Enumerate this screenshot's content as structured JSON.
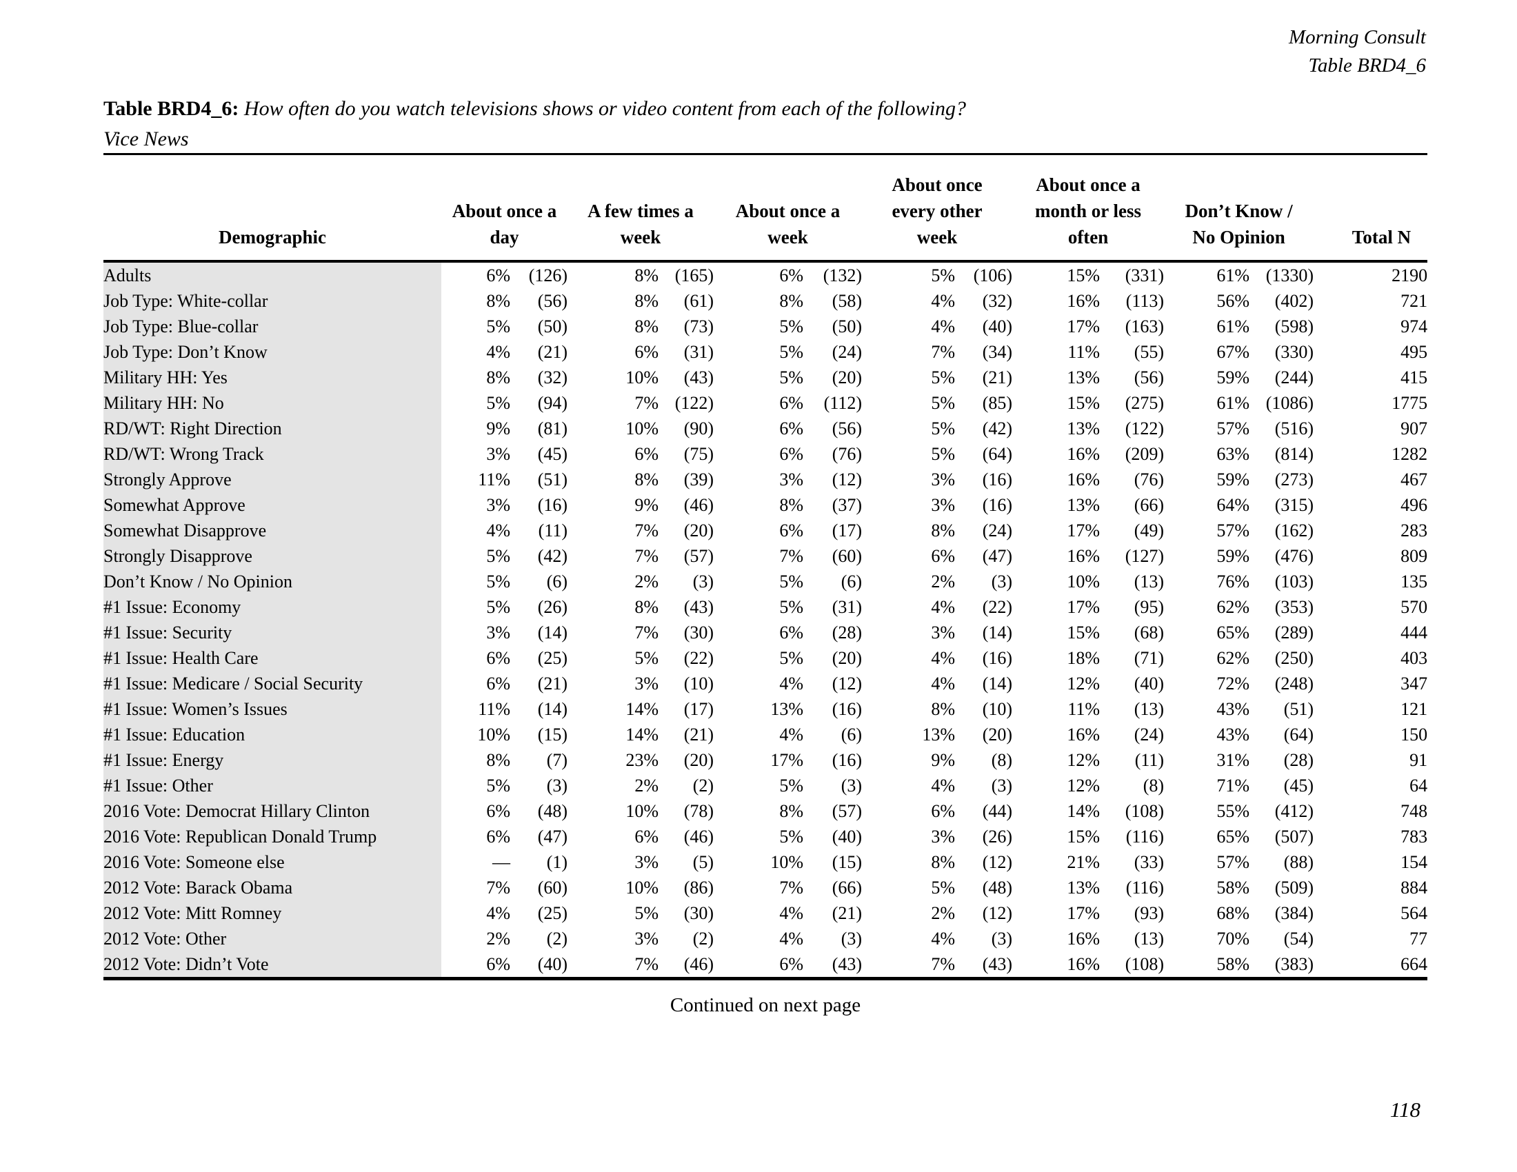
{
  "branding": {
    "org": "Morning Consult",
    "table_ref": "Table BRD4_6"
  },
  "title": {
    "label": "Table BRD4_6:",
    "question": "How often do you watch televisions shows or video content from each of the following?",
    "subject": "Vice News"
  },
  "colors": {
    "demographic_shade": "#e4e4e4"
  },
  "table": {
    "demographic_header": "Demographic",
    "total_header": "Total N",
    "category_headers": [
      {
        "lines": [
          "About once a",
          "day"
        ]
      },
      {
        "lines": [
          "A few times a",
          "week"
        ]
      },
      {
        "lines": [
          "About once a",
          "week"
        ]
      },
      {
        "lines": [
          "About once",
          "every other",
          "week"
        ]
      },
      {
        "lines": [
          "About once a",
          "month or less",
          "often"
        ]
      },
      {
        "lines": [
          "Don’t Know /",
          "No Opinion"
        ]
      }
    ],
    "rows": [
      {
        "demographic": "Adults",
        "values": [
          [
            "6%",
            "(126)"
          ],
          [
            "8%",
            "(165)"
          ],
          [
            "6%",
            "(132)"
          ],
          [
            "5%",
            "(106)"
          ],
          [
            "15%",
            "(331)"
          ],
          [
            "61%",
            "(1330)"
          ]
        ],
        "total": "2190"
      },
      {
        "demographic": "Job Type: White-collar",
        "values": [
          [
            "8%",
            "(56)"
          ],
          [
            "8%",
            "(61)"
          ],
          [
            "8%",
            "(58)"
          ],
          [
            "4%",
            "(32)"
          ],
          [
            "16%",
            "(113)"
          ],
          [
            "56%",
            "(402)"
          ]
        ],
        "total": "721"
      },
      {
        "demographic": "Job Type: Blue-collar",
        "values": [
          [
            "5%",
            "(50)"
          ],
          [
            "8%",
            "(73)"
          ],
          [
            "5%",
            "(50)"
          ],
          [
            "4%",
            "(40)"
          ],
          [
            "17%",
            "(163)"
          ],
          [
            "61%",
            "(598)"
          ]
        ],
        "total": "974"
      },
      {
        "demographic": "Job Type: Don’t Know",
        "values": [
          [
            "4%",
            "(21)"
          ],
          [
            "6%",
            "(31)"
          ],
          [
            "5%",
            "(24)"
          ],
          [
            "7%",
            "(34)"
          ],
          [
            "11%",
            "(55)"
          ],
          [
            "67%",
            "(330)"
          ]
        ],
        "total": "495"
      },
      {
        "demographic": "Military HH: Yes",
        "values": [
          [
            "8%",
            "(32)"
          ],
          [
            "10%",
            "(43)"
          ],
          [
            "5%",
            "(20)"
          ],
          [
            "5%",
            "(21)"
          ],
          [
            "13%",
            "(56)"
          ],
          [
            "59%",
            "(244)"
          ]
        ],
        "total": "415"
      },
      {
        "demographic": "Military HH: No",
        "values": [
          [
            "5%",
            "(94)"
          ],
          [
            "7%",
            "(122)"
          ],
          [
            "6%",
            "(112)"
          ],
          [
            "5%",
            "(85)"
          ],
          [
            "15%",
            "(275)"
          ],
          [
            "61%",
            "(1086)"
          ]
        ],
        "total": "1775"
      },
      {
        "demographic": "RD/WT: Right Direction",
        "values": [
          [
            "9%",
            "(81)"
          ],
          [
            "10%",
            "(90)"
          ],
          [
            "6%",
            "(56)"
          ],
          [
            "5%",
            "(42)"
          ],
          [
            "13%",
            "(122)"
          ],
          [
            "57%",
            "(516)"
          ]
        ],
        "total": "907"
      },
      {
        "demographic": "RD/WT: Wrong Track",
        "values": [
          [
            "3%",
            "(45)"
          ],
          [
            "6%",
            "(75)"
          ],
          [
            "6%",
            "(76)"
          ],
          [
            "5%",
            "(64)"
          ],
          [
            "16%",
            "(209)"
          ],
          [
            "63%",
            "(814)"
          ]
        ],
        "total": "1282"
      },
      {
        "demographic": "Strongly Approve",
        "values": [
          [
            "11%",
            "(51)"
          ],
          [
            "8%",
            "(39)"
          ],
          [
            "3%",
            "(12)"
          ],
          [
            "3%",
            "(16)"
          ],
          [
            "16%",
            "(76)"
          ],
          [
            "59%",
            "(273)"
          ]
        ],
        "total": "467"
      },
      {
        "demographic": "Somewhat Approve",
        "values": [
          [
            "3%",
            "(16)"
          ],
          [
            "9%",
            "(46)"
          ],
          [
            "8%",
            "(37)"
          ],
          [
            "3%",
            "(16)"
          ],
          [
            "13%",
            "(66)"
          ],
          [
            "64%",
            "(315)"
          ]
        ],
        "total": "496"
      },
      {
        "demographic": "Somewhat Disapprove",
        "values": [
          [
            "4%",
            "(11)"
          ],
          [
            "7%",
            "(20)"
          ],
          [
            "6%",
            "(17)"
          ],
          [
            "8%",
            "(24)"
          ],
          [
            "17%",
            "(49)"
          ],
          [
            "57%",
            "(162)"
          ]
        ],
        "total": "283"
      },
      {
        "demographic": "Strongly Disapprove",
        "values": [
          [
            "5%",
            "(42)"
          ],
          [
            "7%",
            "(57)"
          ],
          [
            "7%",
            "(60)"
          ],
          [
            "6%",
            "(47)"
          ],
          [
            "16%",
            "(127)"
          ],
          [
            "59%",
            "(476)"
          ]
        ],
        "total": "809"
      },
      {
        "demographic": "Don’t Know / No Opinion",
        "values": [
          [
            "5%",
            "(6)"
          ],
          [
            "2%",
            "(3)"
          ],
          [
            "5%",
            "(6)"
          ],
          [
            "2%",
            "(3)"
          ],
          [
            "10%",
            "(13)"
          ],
          [
            "76%",
            "(103)"
          ]
        ],
        "total": "135"
      },
      {
        "demographic": "#1 Issue: Economy",
        "values": [
          [
            "5%",
            "(26)"
          ],
          [
            "8%",
            "(43)"
          ],
          [
            "5%",
            "(31)"
          ],
          [
            "4%",
            "(22)"
          ],
          [
            "17%",
            "(95)"
          ],
          [
            "62%",
            "(353)"
          ]
        ],
        "total": "570"
      },
      {
        "demographic": "#1 Issue: Security",
        "values": [
          [
            "3%",
            "(14)"
          ],
          [
            "7%",
            "(30)"
          ],
          [
            "6%",
            "(28)"
          ],
          [
            "3%",
            "(14)"
          ],
          [
            "15%",
            "(68)"
          ],
          [
            "65%",
            "(289)"
          ]
        ],
        "total": "444"
      },
      {
        "demographic": "#1 Issue: Health Care",
        "values": [
          [
            "6%",
            "(25)"
          ],
          [
            "5%",
            "(22)"
          ],
          [
            "5%",
            "(20)"
          ],
          [
            "4%",
            "(16)"
          ],
          [
            "18%",
            "(71)"
          ],
          [
            "62%",
            "(250)"
          ]
        ],
        "total": "403"
      },
      {
        "demographic": "#1 Issue: Medicare / Social Security",
        "values": [
          [
            "6%",
            "(21)"
          ],
          [
            "3%",
            "(10)"
          ],
          [
            "4%",
            "(12)"
          ],
          [
            "4%",
            "(14)"
          ],
          [
            "12%",
            "(40)"
          ],
          [
            "72%",
            "(248)"
          ]
        ],
        "total": "347"
      },
      {
        "demographic": "#1 Issue: Women’s Issues",
        "values": [
          [
            "11%",
            "(14)"
          ],
          [
            "14%",
            "(17)"
          ],
          [
            "13%",
            "(16)"
          ],
          [
            "8%",
            "(10)"
          ],
          [
            "11%",
            "(13)"
          ],
          [
            "43%",
            "(51)"
          ]
        ],
        "total": "121"
      },
      {
        "demographic": "#1 Issue: Education",
        "values": [
          [
            "10%",
            "(15)"
          ],
          [
            "14%",
            "(21)"
          ],
          [
            "4%",
            "(6)"
          ],
          [
            "13%",
            "(20)"
          ],
          [
            "16%",
            "(24)"
          ],
          [
            "43%",
            "(64)"
          ]
        ],
        "total": "150"
      },
      {
        "demographic": "#1 Issue: Energy",
        "values": [
          [
            "8%",
            "(7)"
          ],
          [
            "23%",
            "(20)"
          ],
          [
            "17%",
            "(16)"
          ],
          [
            "9%",
            "(8)"
          ],
          [
            "12%",
            "(11)"
          ],
          [
            "31%",
            "(28)"
          ]
        ],
        "total": "91"
      },
      {
        "demographic": "#1 Issue: Other",
        "values": [
          [
            "5%",
            "(3)"
          ],
          [
            "2%",
            "(2)"
          ],
          [
            "5%",
            "(3)"
          ],
          [
            "4%",
            "(3)"
          ],
          [
            "12%",
            "(8)"
          ],
          [
            "71%",
            "(45)"
          ]
        ],
        "total": "64"
      },
      {
        "demographic": "2016 Vote: Democrat Hillary Clinton",
        "values": [
          [
            "6%",
            "(48)"
          ],
          [
            "10%",
            "(78)"
          ],
          [
            "8%",
            "(57)"
          ],
          [
            "6%",
            "(44)"
          ],
          [
            "14%",
            "(108)"
          ],
          [
            "55%",
            "(412)"
          ]
        ],
        "total": "748"
      },
      {
        "demographic": "2016 Vote: Republican Donald Trump",
        "values": [
          [
            "6%",
            "(47)"
          ],
          [
            "6%",
            "(46)"
          ],
          [
            "5%",
            "(40)"
          ],
          [
            "3%",
            "(26)"
          ],
          [
            "15%",
            "(116)"
          ],
          [
            "65%",
            "(507)"
          ]
        ],
        "total": "783"
      },
      {
        "demographic": "2016 Vote: Someone else",
        "values": [
          [
            "—",
            "(1)"
          ],
          [
            "3%",
            "(5)"
          ],
          [
            "10%",
            "(15)"
          ],
          [
            "8%",
            "(12)"
          ],
          [
            "21%",
            "(33)"
          ],
          [
            "57%",
            "(88)"
          ]
        ],
        "total": "154"
      },
      {
        "demographic": "2012 Vote: Barack Obama",
        "values": [
          [
            "7%",
            "(60)"
          ],
          [
            "10%",
            "(86)"
          ],
          [
            "7%",
            "(66)"
          ],
          [
            "5%",
            "(48)"
          ],
          [
            "13%",
            "(116)"
          ],
          [
            "58%",
            "(509)"
          ]
        ],
        "total": "884"
      },
      {
        "demographic": "2012 Vote: Mitt Romney",
        "values": [
          [
            "4%",
            "(25)"
          ],
          [
            "5%",
            "(30)"
          ],
          [
            "4%",
            "(21)"
          ],
          [
            "2%",
            "(12)"
          ],
          [
            "17%",
            "(93)"
          ],
          [
            "68%",
            "(384)"
          ]
        ],
        "total": "564"
      },
      {
        "demographic": "2012 Vote: Other",
        "values": [
          [
            "2%",
            "(2)"
          ],
          [
            "3%",
            "(2)"
          ],
          [
            "4%",
            "(3)"
          ],
          [
            "4%",
            "(3)"
          ],
          [
            "16%",
            "(13)"
          ],
          [
            "70%",
            "(54)"
          ]
        ],
        "total": "77"
      },
      {
        "demographic": "2012 Vote: Didn’t Vote",
        "values": [
          [
            "6%",
            "(40)"
          ],
          [
            "7%",
            "(46)"
          ],
          [
            "6%",
            "(43)"
          ],
          [
            "7%",
            "(43)"
          ],
          [
            "16%",
            "(108)"
          ],
          [
            "58%",
            "(383)"
          ]
        ],
        "total": "664"
      }
    ]
  },
  "footer": {
    "continued": "Continued on next page",
    "page_number": "118"
  }
}
